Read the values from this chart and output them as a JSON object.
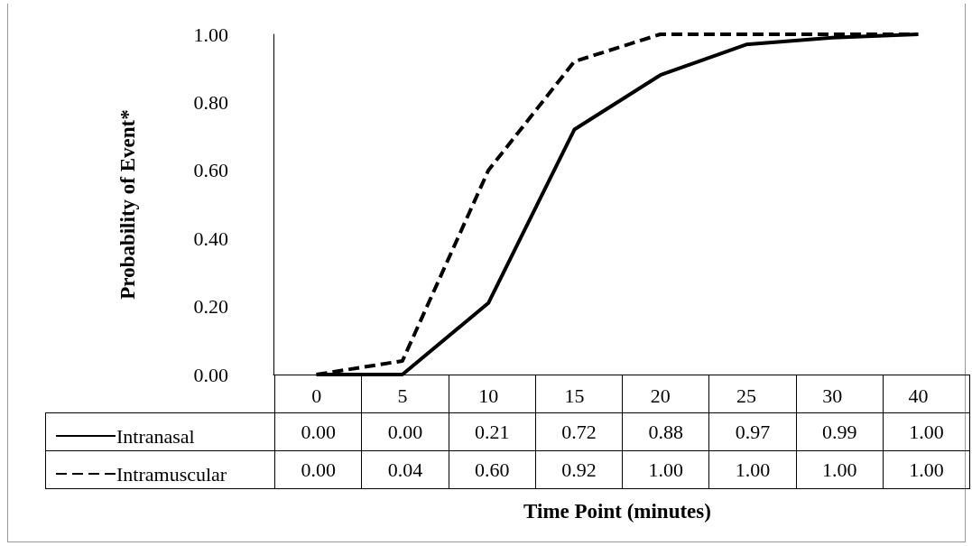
{
  "chart_data": {
    "type": "line",
    "xlabel": "Time Point (minutes)",
    "ylabel": "Probability of Event*",
    "categories": [
      "0",
      "5",
      "10",
      "15",
      "20",
      "25",
      "30",
      "40"
    ],
    "series": [
      {
        "name": "Intranasal",
        "color": "#000000",
        "line_style": "solid",
        "values": [
          0,
          0,
          0.21,
          0.72,
          0.88,
          0.97,
          0.99,
          1
        ],
        "value_labels": [
          "0.00",
          "0.00",
          "0.21",
          "0.72",
          "0.88",
          "0.97",
          "0.99",
          "1.00"
        ]
      },
      {
        "name": "Intramuscular",
        "color": "#000000",
        "line_style": "dashed",
        "values": [
          0,
          0.04,
          0.6,
          0.92,
          1,
          1,
          1,
          1
        ],
        "value_labels": [
          "0.00",
          "0.04",
          "0.60",
          "0.92",
          "1.00",
          "1.00",
          "1.00",
          "1.00"
        ]
      }
    ],
    "ylim": [
      0,
      1
    ],
    "yticks": [
      {
        "value": 0,
        "label": "0.00"
      },
      {
        "value": 0.2,
        "label": "0.20"
      },
      {
        "value": 0.4,
        "label": "0.40"
      },
      {
        "value": 0.6,
        "label": "0.60"
      },
      {
        "value": 0.8,
        "label": "0.80"
      },
      {
        "value": 1,
        "label": "1.00"
      }
    ],
    "grid": false,
    "legend": "bottom left",
    "marker": "none"
  }
}
